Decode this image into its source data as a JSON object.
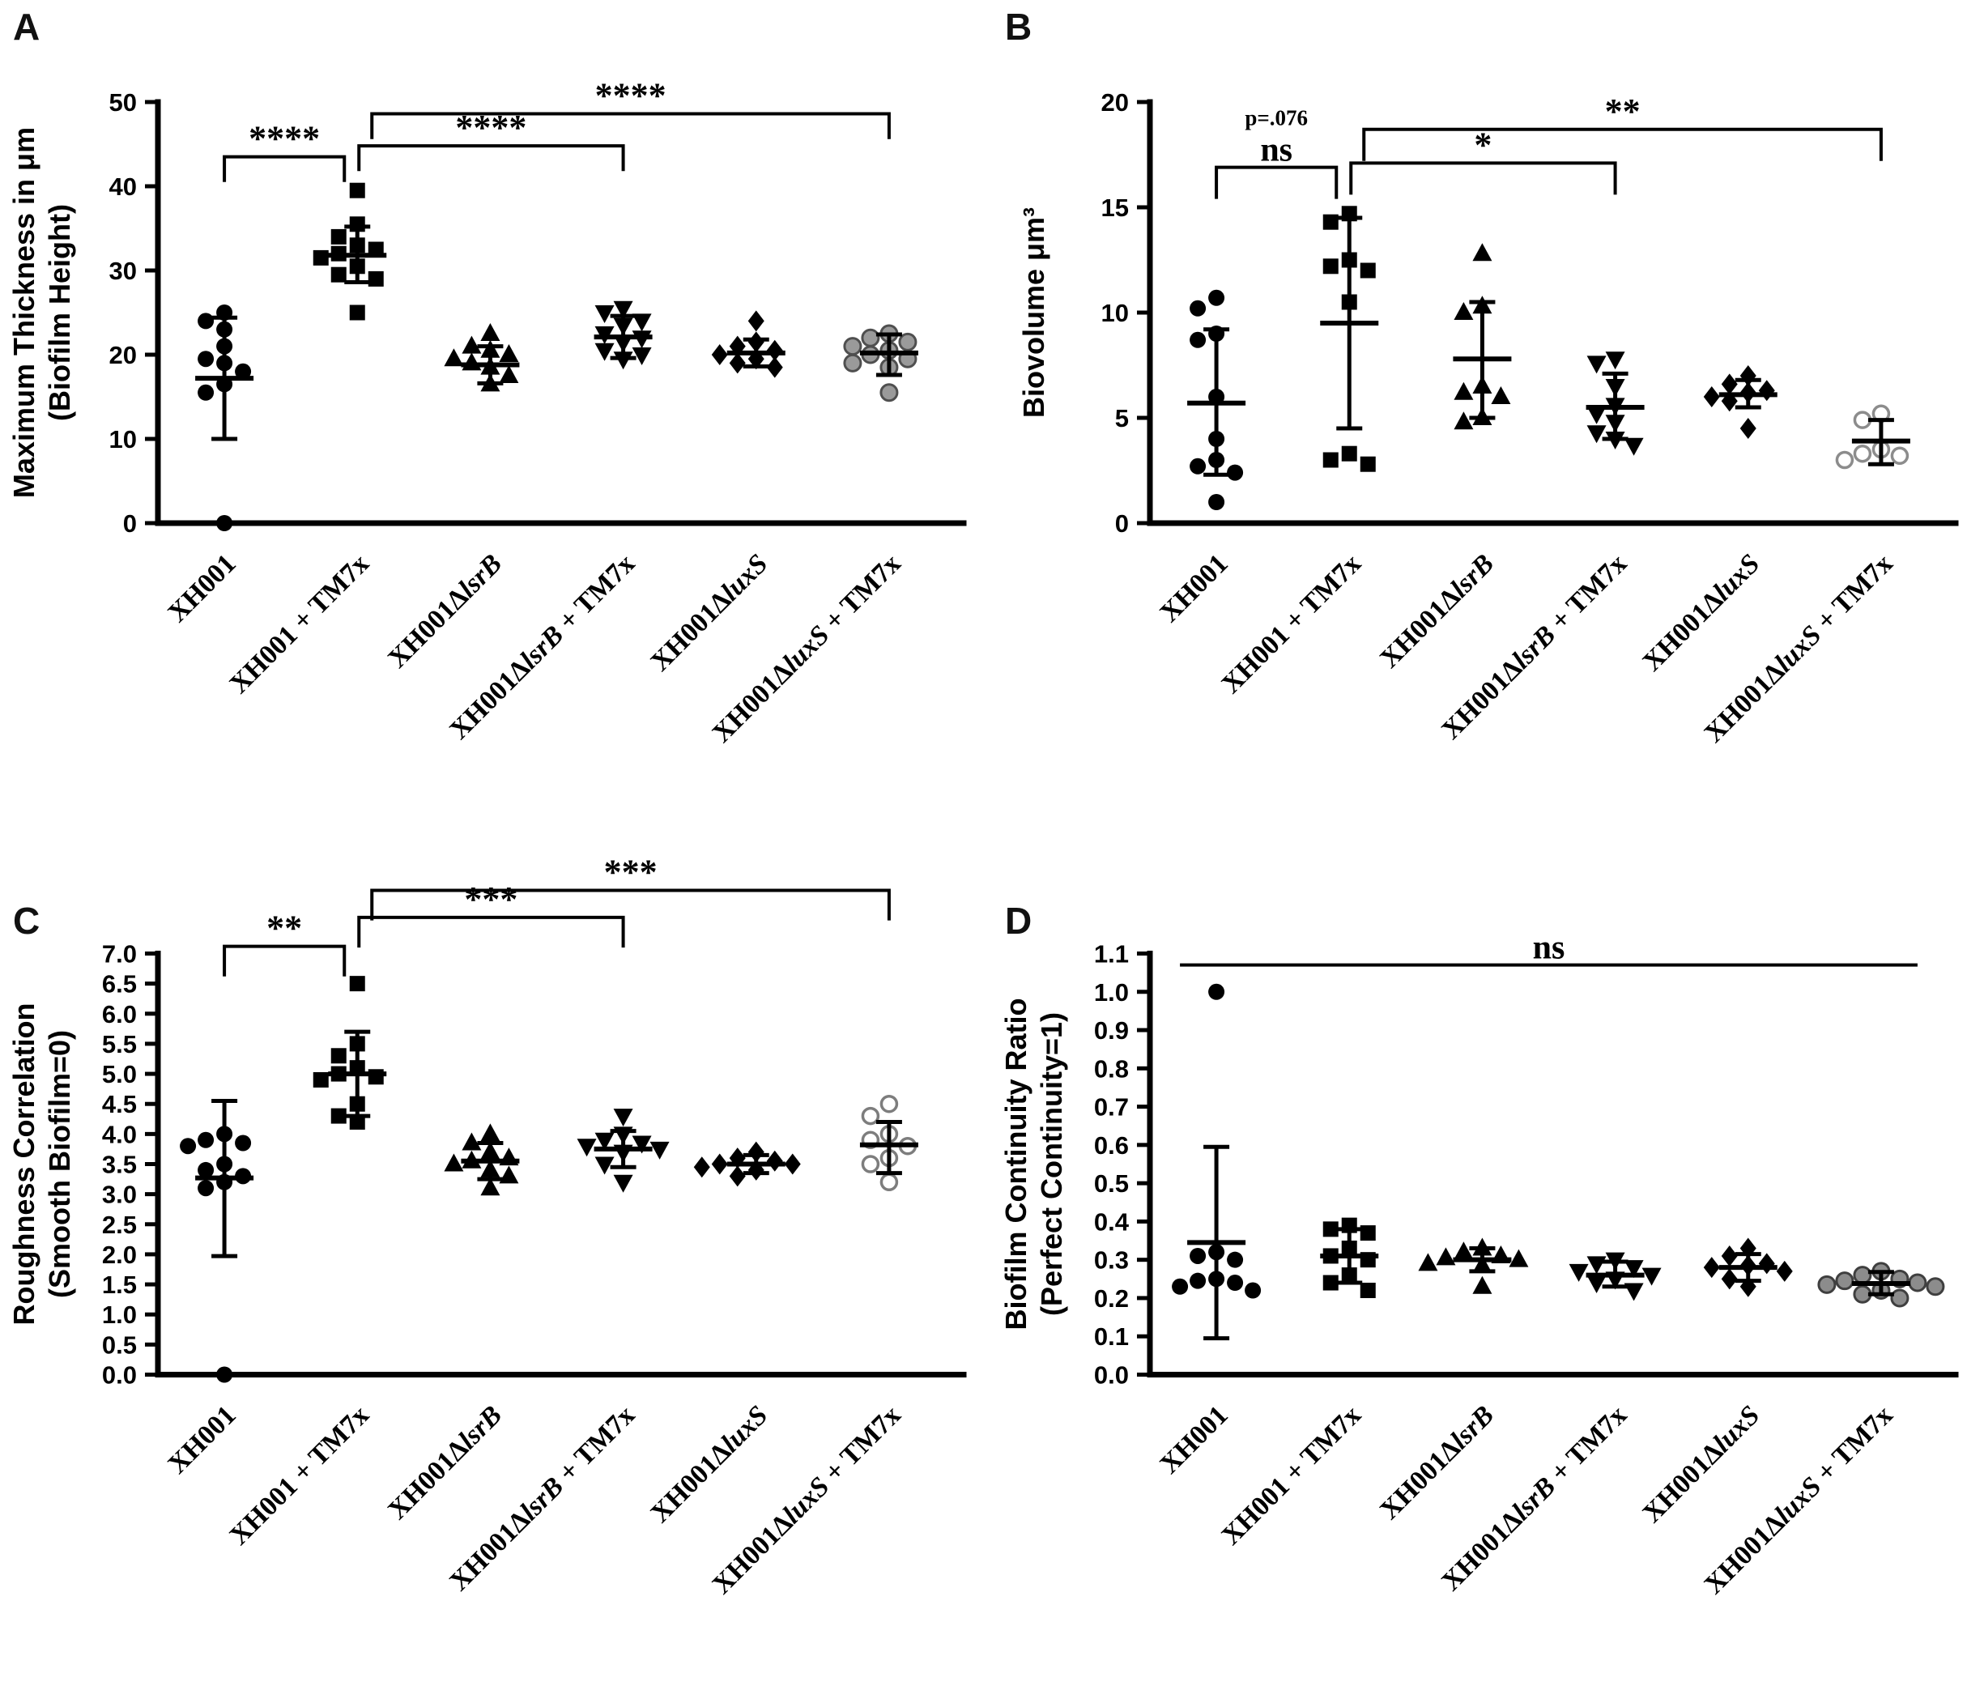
{
  "categories": [
    {
      "segments": [
        [
          "XH001",
          false
        ]
      ]
    },
    {
      "segments": [
        [
          "XH001 + TM7x",
          false
        ]
      ]
    },
    {
      "segments": [
        [
          "XH001Δ",
          false
        ],
        [
          "lsrB",
          true
        ]
      ]
    },
    {
      "segments": [
        [
          "XH001Δ",
          false
        ],
        [
          "lsrB",
          true
        ],
        [
          " + TM7x",
          false
        ]
      ]
    },
    {
      "segments": [
        [
          "XH001Δ",
          false
        ],
        [
          "luxS",
          true
        ]
      ]
    },
    {
      "segments": [
        [
          "XH001Δ",
          false
        ],
        [
          "luxS",
          true
        ],
        [
          " + TM7x",
          false
        ]
      ]
    }
  ],
  "chart_data": [
    {
      "letter": "A",
      "type": "scatter",
      "ylabel_lines": [
        "Maximum Thickness in μm",
        "(Biofilm Height)"
      ],
      "ylim": [
        0,
        50
      ],
      "ytick_values": [
        0,
        10,
        20,
        30,
        40,
        50
      ],
      "ytick_labels": [
        "0",
        "10",
        "20",
        "30",
        "40",
        "50"
      ],
      "series": [
        {
          "name": "XH001",
          "marker": "circle",
          "fill": "#000000",
          "stroke": "#000000",
          "stroke_width": 0,
          "values": [
            25,
            24,
            23,
            21,
            19.5,
            19,
            18,
            16.5,
            15.5,
            0
          ],
          "mean": 17.2,
          "err_low": 10.0,
          "err_high": 24.4
        },
        {
          "name": "XH001 + TM7x",
          "marker": "square",
          "fill": "#000000",
          "stroke": "#000000",
          "stroke_width": 0,
          "values": [
            39.5,
            35.5,
            34,
            33,
            32.5,
            32,
            31.5,
            30.5,
            29.5,
            29,
            25
          ],
          "mean": 31.8,
          "err_low": 28.6,
          "err_high": 35.2
        },
        {
          "name": "XH001ΔlsrB",
          "marker": "triangle-up",
          "fill": "#000000",
          "stroke": "#000000",
          "stroke_width": 0,
          "values": [
            22.5,
            21,
            20.5,
            20,
            19.5,
            19,
            18.5,
            17.5,
            16.5
          ],
          "mean": 18.8,
          "err_low": 16.6,
          "err_high": 21.0
        },
        {
          "name": "XH001ΔlsrB + TM7x",
          "marker": "triangle-down",
          "fill": "#000000",
          "stroke": "#000000",
          "stroke_width": 0,
          "values": [
            25.5,
            25,
            24,
            23.5,
            22.5,
            22,
            21.5,
            20.5,
            20,
            19.5
          ],
          "mean": 22.1,
          "err_low": 19.6,
          "err_high": 24.6
        },
        {
          "name": "XH001ΔluxS",
          "marker": "diamond",
          "fill": "#000000",
          "stroke": "#000000",
          "stroke_width": 0,
          "values": [
            24,
            21.5,
            21,
            20.5,
            20,
            19.5,
            19,
            18.5
          ],
          "mean": 20.2,
          "err_low": 18.6,
          "err_high": 21.8
        },
        {
          "name": "XH001ΔluxS + TM7x",
          "marker": "circle",
          "fill": "#9a9a9a",
          "stroke": "#4f4f4f",
          "stroke_width": 3,
          "values": [
            22.5,
            22,
            21.5,
            21,
            20.5,
            20,
            19.5,
            19,
            18.5,
            15.5
          ],
          "mean": 20.2,
          "err_low": 17.6,
          "err_high": 22.4
        }
      ],
      "significance": [
        {
          "from": 0,
          "to": 1,
          "label": "****",
          "y": 43.5,
          "drop": 3.0,
          "x1_off": 0,
          "x2_off": -16
        },
        {
          "from": 1,
          "to": 3,
          "label": "****",
          "y": 44.8,
          "drop": 3.0,
          "x1_off": 2,
          "x2_off": 0
        },
        {
          "from": 1,
          "to": 5,
          "label": "****",
          "y": 48.6,
          "drop": 3.0,
          "x1_off": 18,
          "x2_off": 0
        }
      ]
    },
    {
      "letter": "B",
      "type": "scatter",
      "ylabel_lines": [
        "Biovolume μm³"
      ],
      "ylim": [
        0,
        20
      ],
      "ytick_values": [
        0,
        5,
        10,
        15,
        20
      ],
      "ytick_labels": [
        "0",
        "5",
        "10",
        "15",
        "20"
      ],
      "series": [
        {
          "name": "XH001",
          "marker": "circle",
          "fill": "#000000",
          "stroke": "#000000",
          "stroke_width": 0,
          "values": [
            10.7,
            10.2,
            9.0,
            8.7,
            6.0,
            4.0,
            3.0,
            2.7,
            2.4,
            1.0
          ],
          "mean": 5.7,
          "err_low": 2.3,
          "err_high": 9.2
        },
        {
          "name": "XH001 + TM7x",
          "marker": "square",
          "fill": "#000000",
          "stroke": "#000000",
          "stroke_width": 0,
          "values": [
            14.7,
            14.3,
            12.5,
            12.2,
            12.0,
            10.5,
            3.3,
            3.0,
            2.8
          ],
          "mean": 9.5,
          "err_low": 4.5,
          "err_high": 14.5
        },
        {
          "name": "XH001ΔlsrB",
          "marker": "triangle-up",
          "fill": "#000000",
          "stroke": "#000000",
          "stroke_width": 0,
          "values": [
            12.8,
            10.3,
            10.0,
            6.5,
            6.2,
            6.0,
            5.0,
            4.8
          ],
          "mean": 7.8,
          "err_low": 5.0,
          "err_high": 10.5
        },
        {
          "name": "XH001ΔlsrB + TM7x",
          "marker": "triangle-down",
          "fill": "#000000",
          "stroke": "#000000",
          "stroke_width": 0,
          "values": [
            7.8,
            7.6,
            6.5,
            5.6,
            5.2,
            4.8,
            4.3,
            4.0,
            3.7
          ],
          "mean": 5.5,
          "err_low": 4.0,
          "err_high": 7.1
        },
        {
          "name": "XH001ΔluxS",
          "marker": "diamond",
          "fill": "#000000",
          "stroke": "#000000",
          "stroke_width": 0,
          "values": [
            7.0,
            6.6,
            6.3,
            6.2,
            6.0,
            5.8,
            4.5
          ],
          "mean": 6.1,
          "err_low": 5.5,
          "err_high": 6.8
        },
        {
          "name": "XH001ΔluxS + TM7x",
          "marker": "circle-open",
          "fill": "#ffffff",
          "stroke": "#8c8c8c",
          "stroke_width": 3.5,
          "values": [
            5.2,
            4.9,
            3.5,
            3.3,
            3.2,
            3.0
          ],
          "mean": 3.9,
          "err_low": 2.8,
          "err_high": 4.9
        }
      ],
      "significance": [
        {
          "from": 0,
          "to": 1,
          "label": "ns",
          "sublabel": "p=.076",
          "y": 16.9,
          "drop": 1.5,
          "x1_off": 0,
          "x2_off": -16
        },
        {
          "from": 1,
          "to": 3,
          "label": "*",
          "y": 17.1,
          "drop": 1.5,
          "x1_off": 2,
          "x2_off": 0
        },
        {
          "from": 1,
          "to": 5,
          "label": "**",
          "y": 18.7,
          "drop": 1.5,
          "x1_off": 18,
          "x2_off": 0
        }
      ]
    },
    {
      "letter": "C",
      "type": "scatter",
      "ylabel_lines": [
        "Roughness Correlation",
        "(Smooth Biofilm=0)"
      ],
      "ylim": [
        0,
        7
      ],
      "ytick_values": [
        0,
        0.5,
        1,
        1.5,
        2,
        2.5,
        3,
        3.5,
        4,
        4.5,
        5,
        5.5,
        6,
        6.5,
        7
      ],
      "ytick_labels": [
        "0.0",
        "0.5",
        "1.0",
        "1.5",
        "2.0",
        "2.5",
        "3.0",
        "3.5",
        "4.0",
        "4.5",
        "5.0",
        "5.5",
        "6.0",
        "6.5",
        "7.0"
      ],
      "series": [
        {
          "name": "XH001",
          "marker": "circle",
          "fill": "#000000",
          "stroke": "#000000",
          "stroke_width": 0,
          "values": [
            4.0,
            3.9,
            3.85,
            3.8,
            3.5,
            3.4,
            3.3,
            3.2,
            3.1,
            0
          ],
          "mean": 3.27,
          "err_low": 1.97,
          "err_high": 4.55
        },
        {
          "name": "XH001 + TM7x",
          "marker": "square",
          "fill": "#000000",
          "stroke": "#000000",
          "stroke_width": 0,
          "values": [
            6.5,
            5.5,
            5.3,
            5.1,
            5.0,
            4.95,
            4.9,
            4.5,
            4.3,
            4.2
          ],
          "mean": 5.0,
          "err_low": 4.3,
          "err_high": 5.7
        },
        {
          "name": "XH001ΔlsrB",
          "marker": "triangle-up",
          "fill": "#000000",
          "stroke": "#000000",
          "stroke_width": 0,
          "values": [
            4.0,
            3.85,
            3.7,
            3.6,
            3.55,
            3.5,
            3.4,
            3.3,
            3.1
          ],
          "mean": 3.55,
          "err_low": 3.25,
          "err_high": 3.85
        },
        {
          "name": "XH001ΔlsrB + TM7x",
          "marker": "triangle-down",
          "fill": "#000000",
          "stroke": "#000000",
          "stroke_width": 0,
          "values": [
            4.3,
            4.0,
            3.9,
            3.85,
            3.8,
            3.75,
            3.7,
            3.5,
            3.2
          ],
          "mean": 3.75,
          "err_low": 3.45,
          "err_high": 4.05
        },
        {
          "name": "XH001ΔluxS",
          "marker": "diamond",
          "fill": "#000000",
          "stroke": "#000000",
          "stroke_width": 0,
          "values": [
            3.7,
            3.6,
            3.55,
            3.5,
            3.5,
            3.45,
            3.4,
            3.3
          ],
          "mean": 3.5,
          "err_low": 3.35,
          "err_high": 3.65
        },
        {
          "name": "XH001ΔluxS + TM7x",
          "marker": "circle-open",
          "fill": "#ffffff",
          "stroke": "#7d7d7d",
          "stroke_width": 3.5,
          "values": [
            4.5,
            4.3,
            4.0,
            3.9,
            3.8,
            3.6,
            3.5,
            3.2
          ],
          "mean": 3.82,
          "err_low": 3.35,
          "err_high": 4.2
        }
      ],
      "significance": [
        {
          "from": 0,
          "to": 1,
          "label": "**",
          "y": 7.12,
          "drop": 0.5,
          "x1_off": 0,
          "x2_off": -16
        },
        {
          "from": 1,
          "to": 3,
          "label": "***",
          "y": 7.6,
          "drop": 0.5,
          "x1_off": 2,
          "x2_off": 0
        },
        {
          "from": 1,
          "to": 5,
          "label": "***",
          "y": 8.05,
          "drop": 0.5,
          "x1_off": 18,
          "x2_off": 0
        }
      ]
    },
    {
      "letter": "D",
      "type": "scatter",
      "ylabel_lines": [
        "Biofilm Continuity Ratio",
        "(Perfect  Continuity=1)"
      ],
      "ylim": [
        0,
        1.1
      ],
      "ytick_values": [
        0,
        0.1,
        0.2,
        0.3,
        0.4,
        0.5,
        0.6,
        0.7,
        0.8,
        0.9,
        1.0,
        1.1
      ],
      "ytick_labels": [
        "0.0",
        "0.1",
        "0.2",
        "0.3",
        "0.4",
        "0.5",
        "0.6",
        "0.7",
        "0.8",
        "0.9",
        "1.0",
        "1.1"
      ],
      "series": [
        {
          "name": "XH001",
          "marker": "circle",
          "fill": "#000000",
          "stroke": "#000000",
          "stroke_width": 0,
          "values": [
            1.0,
            0.32,
            0.31,
            0.3,
            0.25,
            0.245,
            0.24,
            0.23,
            0.22
          ],
          "mean": 0.345,
          "err_low": 0.095,
          "err_high": 0.595
        },
        {
          "name": "XH001 + TM7x",
          "marker": "square",
          "fill": "#000000",
          "stroke": "#000000",
          "stroke_width": 0,
          "values": [
            0.39,
            0.38,
            0.37,
            0.33,
            0.31,
            0.3,
            0.26,
            0.24,
            0.22
          ],
          "mean": 0.31,
          "err_low": 0.24,
          "err_high": 0.38
        },
        {
          "name": "XH001ΔlsrB",
          "marker": "triangle-up",
          "fill": "#000000",
          "stroke": "#000000",
          "stroke_width": 0,
          "values": [
            0.33,
            0.32,
            0.31,
            0.305,
            0.3,
            0.29,
            0.285,
            0.23
          ],
          "mean": 0.3,
          "err_low": 0.27,
          "err_high": 0.33
        },
        {
          "name": "XH001ΔlsrB + TM7x",
          "marker": "triangle-down",
          "fill": "#000000",
          "stroke": "#000000",
          "stroke_width": 0,
          "values": [
            0.3,
            0.29,
            0.28,
            0.27,
            0.26,
            0.25,
            0.24,
            0.22
          ],
          "mean": 0.26,
          "err_low": 0.23,
          "err_high": 0.295
        },
        {
          "name": "XH001ΔluxS",
          "marker": "diamond",
          "fill": "#000000",
          "stroke": "#000000",
          "stroke_width": 0,
          "values": [
            0.33,
            0.31,
            0.29,
            0.285,
            0.28,
            0.27,
            0.25,
            0.23
          ],
          "mean": 0.28,
          "err_low": 0.245,
          "err_high": 0.315
        },
        {
          "name": "XH001ΔluxS + TM7x",
          "marker": "circle",
          "fill": "#8c8c8c",
          "stroke": "#3f3f3f",
          "stroke_width": 3,
          "values": [
            0.27,
            0.26,
            0.25,
            0.245,
            0.24,
            0.235,
            0.23,
            0.22,
            0.21,
            0.2
          ],
          "mean": 0.238,
          "err_low": 0.21,
          "err_high": 0.268
        }
      ],
      "significance": [
        {
          "from": 0,
          "to": 5,
          "label": "ns",
          "y": 1.07,
          "drop": 0,
          "style": "line",
          "x1_off": -45,
          "x2_off": 45
        }
      ]
    }
  ]
}
